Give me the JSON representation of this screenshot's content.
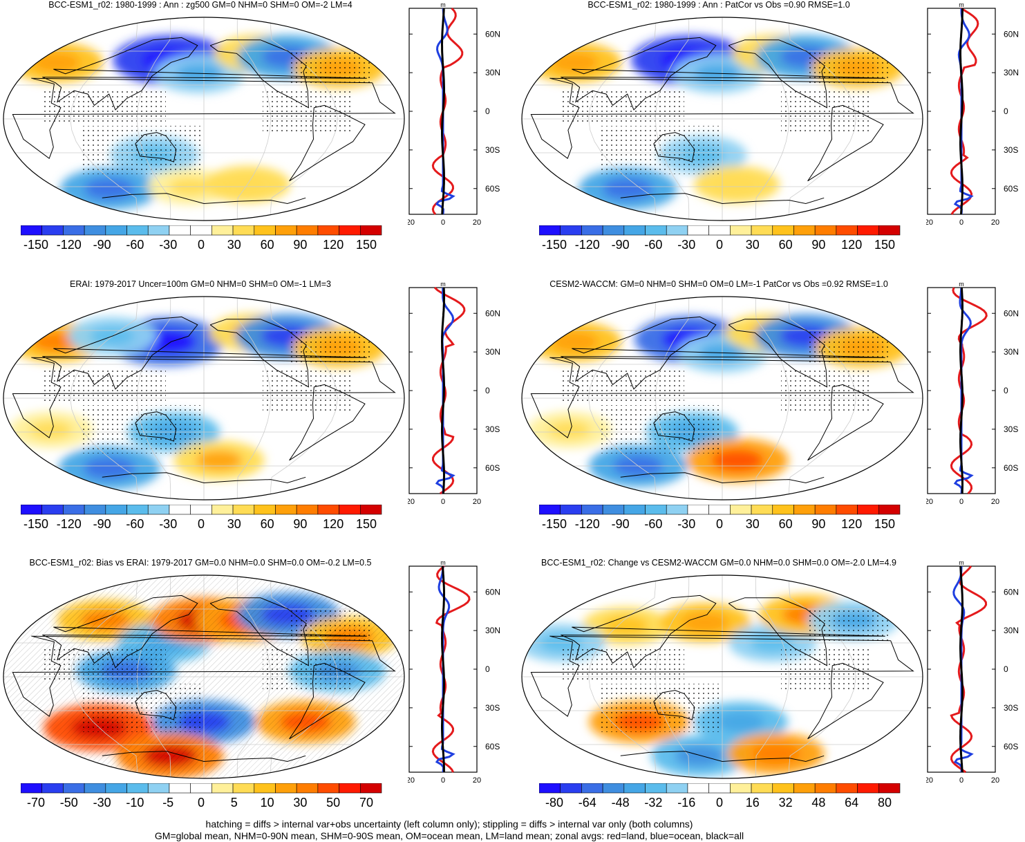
{
  "panels": [
    {
      "id": "p1",
      "title": "BCC-ESM1_r02: 1980-1999 : Ann : zg500 GM=0 NHM=0 SHM=0 OM=-2 LM=4",
      "colorbar": {
        "labels": [
          "-150",
          "-120",
          "-90",
          "-60",
          "-30",
          "0",
          "30",
          "60",
          "90",
          "120",
          "150"
        ]
      },
      "zonal": {
        "unit": "m",
        "xticks": [
          "-20",
          "0",
          "20"
        ],
        "yticks": [
          "60N",
          "30N",
          "0",
          "30S",
          "60S"
        ]
      },
      "map": {
        "stippling": true,
        "hatching": false
      },
      "anomalies": [
        {
          "lon": 0,
          "lat": 50,
          "value": 55
        },
        {
          "lon": 140,
          "lat": 52,
          "value": -130
        },
        {
          "lon": 175,
          "lat": 40,
          "value": -45
        },
        {
          "lon": 255,
          "lat": 58,
          "value": 40
        },
        {
          "lon": 290,
          "lat": 55,
          "value": -80
        },
        {
          "lon": 335,
          "lat": 45,
          "value": 50
        },
        {
          "lon": 130,
          "lat": -32,
          "value": -40
        },
        {
          "lon": 40,
          "lat": -62,
          "value": -70
        },
        {
          "lon": 160,
          "lat": -60,
          "value": 25
        },
        {
          "lon": 240,
          "lat": -58,
          "value": 30
        }
      ]
    },
    {
      "id": "p2",
      "title": "BCC-ESM1_r02: 1980-1999 : Ann : PatCor vs Obs =0.90 RMSE=1.0",
      "colorbar": {
        "labels": [
          "-150",
          "-120",
          "-90",
          "-60",
          "-30",
          "0",
          "30",
          "60",
          "90",
          "120",
          "150"
        ]
      },
      "zonal": {
        "unit": "m",
        "xticks": [
          "-20",
          "0",
          "20"
        ],
        "yticks": [
          "60N",
          "30N",
          "0",
          "30S",
          "60S"
        ]
      },
      "map": {
        "stippling": true,
        "hatching": false
      },
      "anomalies": [
        {
          "lon": 0,
          "lat": 50,
          "value": 55
        },
        {
          "lon": 140,
          "lat": 52,
          "value": -130
        },
        {
          "lon": 175,
          "lat": 40,
          "value": -45
        },
        {
          "lon": 255,
          "lat": 58,
          "value": 40
        },
        {
          "lon": 290,
          "lat": 55,
          "value": -80
        },
        {
          "lon": 335,
          "lat": 45,
          "value": 50
        },
        {
          "lon": 160,
          "lat": -32,
          "value": -40
        },
        {
          "lon": 40,
          "lat": -62,
          "value": -70
        },
        {
          "lon": 200,
          "lat": -58,
          "value": 30
        }
      ]
    },
    {
      "id": "p3",
      "title": "ERAI: 1979-2017 Uncer=100m GM=0 NHM=0 SHM=0 OM=-1 LM=3",
      "colorbar": {
        "labels": [
          "-150",
          "-120",
          "-90",
          "-60",
          "-30",
          "0",
          "30",
          "60",
          "90",
          "120",
          "150"
        ]
      },
      "zonal": {
        "unit": "m",
        "xticks": [
          "-20",
          "0",
          "20"
        ],
        "yticks": [
          "60N",
          "30N",
          "0",
          "30S",
          "60S"
        ]
      },
      "map": {
        "stippling": true,
        "hatching": false
      },
      "anomalies": [
        {
          "lon": 0,
          "lat": 50,
          "value": 60
        },
        {
          "lon": 135,
          "lat": 50,
          "value": -120
        },
        {
          "lon": 60,
          "lat": 55,
          "value": -40
        },
        {
          "lon": 250,
          "lat": 58,
          "value": 45
        },
        {
          "lon": 290,
          "lat": 55,
          "value": -90
        },
        {
          "lon": 335,
          "lat": 45,
          "value": 55
        },
        {
          "lon": 150,
          "lat": -30,
          "value": -50
        },
        {
          "lon": 40,
          "lat": -62,
          "value": -80
        },
        {
          "lon": 200,
          "lat": -55,
          "value": 45
        },
        {
          "lon": 30,
          "lat": -28,
          "value": 25
        }
      ]
    },
    {
      "id": "p4",
      "title": "CESM2-WACCM: GM=0 NHM=0 SHM=0 OM=0 LM=-1 PatCor vs Obs =0.92 RMSE=1.0",
      "colorbar": {
        "labels": [
          "-150",
          "-120",
          "-90",
          "-60",
          "-30",
          "0",
          "30",
          "60",
          "90",
          "120",
          "150"
        ]
      },
      "zonal": {
        "unit": "m",
        "xticks": [
          "-20",
          "0",
          "20"
        ],
        "yticks": [
          "60N",
          "30N",
          "0",
          "30S",
          "60S"
        ]
      },
      "map": {
        "stippling": true,
        "hatching": false
      },
      "anomalies": [
        {
          "lon": 0,
          "lat": 50,
          "value": 55
        },
        {
          "lon": 140,
          "lat": 52,
          "value": -110
        },
        {
          "lon": 180,
          "lat": 40,
          "value": -45
        },
        {
          "lon": 245,
          "lat": 58,
          "value": 40
        },
        {
          "lon": 290,
          "lat": 55,
          "value": -85
        },
        {
          "lon": 340,
          "lat": 45,
          "value": 55
        },
        {
          "lon": 150,
          "lat": -30,
          "value": -50
        },
        {
          "lon": 60,
          "lat": -60,
          "value": -70
        },
        {
          "lon": 200,
          "lat": -55,
          "value": 80
        },
        {
          "lon": 30,
          "lat": -28,
          "value": 25
        }
      ]
    },
    {
      "id": "p5",
      "title": "BCC-ESM1_r02: Bias vs ERAI: 1979-2017 GM=0.0 NHM=0.0 SHM=0.0 OM=-0.2 LM=0.5",
      "colorbar": {
        "labels": [
          "-70",
          "-50",
          "-30",
          "-10",
          "-5",
          "0",
          "5",
          "10",
          "30",
          "50",
          "70"
        ]
      },
      "zonal": {
        "unit": "m",
        "xticks": [
          "-20",
          "0",
          "20"
        ],
        "yticks": [
          "60N",
          "30N",
          "0",
          "30S",
          "60S"
        ]
      },
      "map": {
        "stippling": true,
        "hatching": true
      },
      "anomalies": [
        {
          "lon": 60,
          "lat": 50,
          "value": 30
        },
        {
          "lon": 140,
          "lat": 30,
          "value": -25
        },
        {
          "lon": 180,
          "lat": 50,
          "value": 45
        },
        {
          "lon": 230,
          "lat": 50,
          "value": 35
        },
        {
          "lon": 290,
          "lat": 55,
          "value": -40
        },
        {
          "lon": 330,
          "lat": 35,
          "value": 30
        },
        {
          "lon": 110,
          "lat": 5,
          "value": -35
        },
        {
          "lon": 300,
          "lat": 5,
          "value": -30
        },
        {
          "lon": 60,
          "lat": -45,
          "value": 50
        },
        {
          "lon": 180,
          "lat": -40,
          "value": -40
        },
        {
          "lon": 290,
          "lat": -40,
          "value": 35
        },
        {
          "lon": 120,
          "lat": -70,
          "value": 45
        }
      ]
    },
    {
      "id": "p6",
      "title": "BCC-ESM1_r02: Change vs CESM2-WACCM GM=0.0 NHM=0.0 SHM=0.0 OM=-2.0 LM=4.9",
      "colorbar": {
        "labels": [
          "-80",
          "-64",
          "-48",
          "-32",
          "-16",
          "0",
          "16",
          "32",
          "48",
          "64",
          "80"
        ]
      },
      "zonal": {
        "unit": "m",
        "xticks": [
          "-20",
          "0",
          "20"
        ],
        "yticks": [
          "60N",
          "30N",
          "0",
          "30S",
          "60S"
        ]
      },
      "map": {
        "stippling": true,
        "hatching": false
      },
      "anomalies": [
        {
          "lon": 70,
          "lat": 45,
          "value": 20
        },
        {
          "lon": 160,
          "lat": 48,
          "value": 25
        },
        {
          "lon": 230,
          "lat": 30,
          "value": -20
        },
        {
          "lon": 290,
          "lat": 55,
          "value": 30
        },
        {
          "lon": 340,
          "lat": 50,
          "value": -25
        },
        {
          "lon": 20,
          "lat": 30,
          "value": -20
        },
        {
          "lon": 90,
          "lat": -40,
          "value": 40
        },
        {
          "lon": 200,
          "lat": -40,
          "value": -30
        },
        {
          "lon": 140,
          "lat": -70,
          "value": -35
        },
        {
          "lon": 270,
          "lat": -68,
          "value": 35
        }
      ]
    }
  ],
  "footer": {
    "line1": "hatching = diffs > internal var+obs uncertainty (left column only); stippling = diffs > internal var only (both columns)",
    "line2": "GM=global mean, NHM=0-90N mean, SHM=0-90S mean, OM=ocean mean, LM=land mean; zonal avgs: red=land, blue=ocean, black=all"
  },
  "colors": {
    "palette": [
      "#1e0fff",
      "#2a3ef0",
      "#3a6ee6",
      "#3f8ee0",
      "#45a6e6",
      "#5bbcec",
      "#8fd1f2",
      "#ffffff",
      "#ffffff",
      "#fff09a",
      "#ffdc55",
      "#ffc21c",
      "#ffa00a",
      "#ff7d00",
      "#ff4c00",
      "#ff1a00",
      "#d40000"
    ],
    "land_line": "#e41a1c",
    "ocean_line": "#1f3fe0",
    "all_line": "#000000"
  },
  "chart_data": [
    {
      "type": "heatmap",
      "panel": "p1",
      "zonal_series": [
        {
          "name": "red=land"
        },
        {
          "name": "blue=ocean"
        },
        {
          "name": "black=all"
        }
      ]
    },
    {
      "type": "heatmap",
      "panel": "p2"
    },
    {
      "type": "heatmap",
      "panel": "p3"
    },
    {
      "type": "heatmap",
      "panel": "p4"
    },
    {
      "type": "heatmap",
      "panel": "p5"
    },
    {
      "type": "heatmap",
      "panel": "p6"
    }
  ]
}
